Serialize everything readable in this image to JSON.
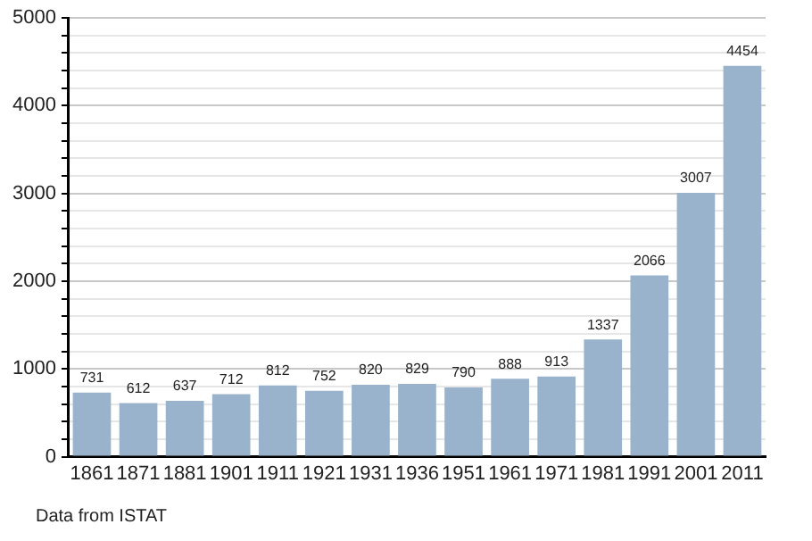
{
  "chart_data": {
    "type": "bar",
    "categories": [
      "1861",
      "1871",
      "1881",
      "1901",
      "1911",
      "1921",
      "1931",
      "1936",
      "1951",
      "1961",
      "1971",
      "1981",
      "1991",
      "2001",
      "2011"
    ],
    "values": [
      731,
      612,
      637,
      712,
      812,
      752,
      820,
      829,
      790,
      888,
      913,
      1337,
      2066,
      3007,
      4454
    ],
    "color": "#99b3cc",
    "ylim": [
      0,
      5000
    ],
    "yticks": [
      0,
      {
        "value": 200,
        "label": null
      },
      {
        "value": 400,
        "label": null
      },
      {
        "value": 600,
        "label": null
      },
      {
        "value": 800,
        "label": null
      },
      1000,
      {
        "value": 1200,
        "label": null
      },
      {
        "value": 1400,
        "label": null
      },
      {
        "value": 1600,
        "label": null
      },
      {
        "value": 1800,
        "label": null
      },
      2000,
      {
        "value": 2200,
        "label": null
      },
      {
        "value": 2400,
        "label": null
      },
      {
        "value": 2600,
        "label": null
      },
      {
        "value": 2800,
        "label": null
      },
      3000,
      {
        "value": 3200,
        "label": null
      },
      {
        "value": 3400,
        "label": null
      },
      {
        "value": 3600,
        "label": null
      },
      {
        "value": 3800,
        "label": null
      },
      4000,
      {
        "value": 4200,
        "label": null
      },
      {
        "value": 4400,
        "label": null
      },
      {
        "value": 4600,
        "label": null
      },
      {
        "value": 4800,
        "label": null
      },
      5000
    ],
    "grid": "y",
    "data_labels": true,
    "annotations": [
      "Data from ISTAT"
    ]
  }
}
